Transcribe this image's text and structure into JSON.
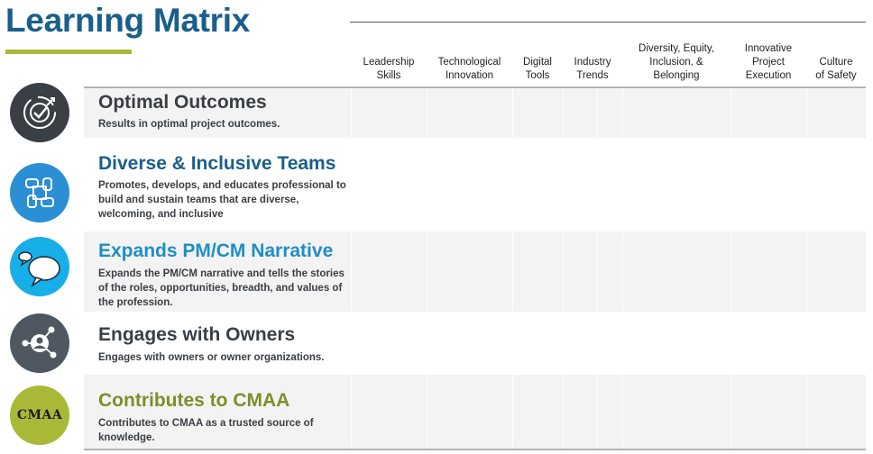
{
  "page": {
    "title": "Learning Matrix"
  },
  "columns": [
    "Leadership\nSkills",
    "Technological\nInnovation",
    "Digital\nTools",
    "Industry\nTrends",
    "Diversity, Equity,\nInclusion, &\nBelonging",
    "Innovative\nProject\nExecution",
    "Culture\nof Safety"
  ],
  "rows": [
    {
      "title": "Optimal Outcomes",
      "description": "Results in optimal project outcomes.",
      "icon": "target-check-icon",
      "title_color": "#3a3f45",
      "icon_color": "#3a3f45"
    },
    {
      "title": "Diverse & Inclusive Teams",
      "description": "Promotes, develops, and educates professional to build and sustain teams that are diverse, welcoming, and inclusive",
      "icon": "joined-hands-icon",
      "title_color": "#1a5f8c",
      "icon_color": "#2a8fd4"
    },
    {
      "title": "Expands PM/CM Narrative",
      "description": "Expands the PM/CM narrative and tells the stories of the roles, opportunities, breadth, and values of the profession.",
      "icon": "speech-bubbles-icon",
      "title_color": "#1f8ec6",
      "icon_color": "#18aee8"
    },
    {
      "title": "Engages with Owners",
      "description": "Engages with owners or owner organizations.",
      "icon": "network-person-icon",
      "title_color": "#3a3f45",
      "icon_color": "#4f5760"
    },
    {
      "title": "Contributes to CMAA",
      "description": "Contributes to CMAA as a trusted source of knowledge.",
      "icon": "cmaa-logo",
      "logo_text": "CMAA",
      "title_color": "#7d8e2a",
      "icon_color": "#a9b836"
    }
  ]
}
